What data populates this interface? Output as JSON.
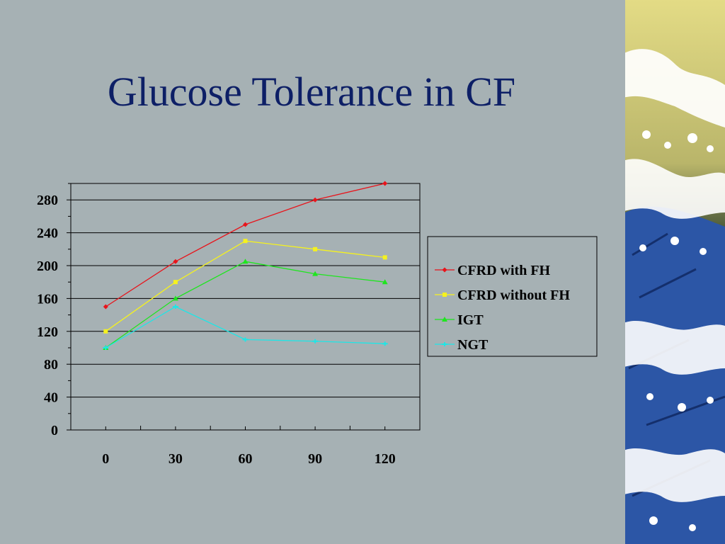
{
  "slide": {
    "title": "Glucose Tolerance in CF"
  },
  "chart_data": {
    "type": "line",
    "title": "",
    "xlabel": "",
    "ylabel": "",
    "categories": [
      "0",
      "30",
      "60",
      "90",
      "120"
    ],
    "ylim": [
      0,
      300
    ],
    "yticks": [
      0,
      40,
      80,
      120,
      160,
      200,
      240,
      280
    ],
    "grid": true,
    "legend_position": "right",
    "series": [
      {
        "name": "CFRD with FH",
        "values": [
          150,
          205,
          250,
          280,
          300
        ],
        "color": "#e8141b",
        "marker": "diamond"
      },
      {
        "name": "CFRD without FH",
        "values": [
          120,
          180,
          230,
          220,
          210
        ],
        "color": "#f5f21e",
        "marker": "square"
      },
      {
        "name": "IGT",
        "values": [
          100,
          160,
          205,
          190,
          180
        ],
        "color": "#1ee61e",
        "marker": "triangle"
      },
      {
        "name": "NGT",
        "values": [
          100,
          150,
          110,
          108,
          105
        ],
        "color": "#1ee6e6",
        "marker": "star"
      }
    ]
  },
  "decoration": {
    "panel": "great-wave-strip",
    "colors": {
      "sky": "#e3db85",
      "wave": "#2c56a6",
      "foam": "#ffffff"
    }
  }
}
